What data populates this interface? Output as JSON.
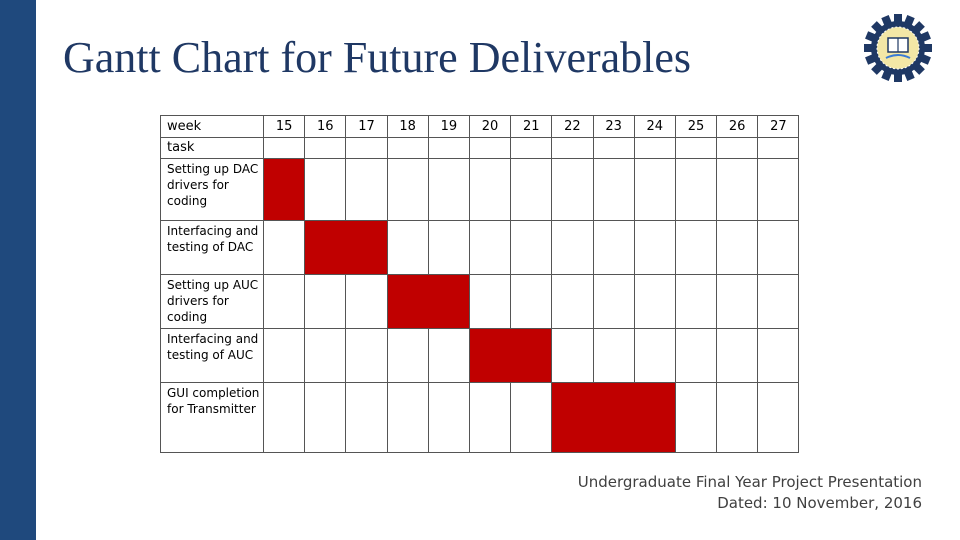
{
  "slide": {
    "title": "Gantt Chart for Future Deliverables",
    "accent_color": "#1f497d",
    "logo_icon": "university-seal-gear-icon"
  },
  "chart_data": {
    "type": "table",
    "header_label": "week",
    "task_header": "task",
    "weeks": [
      "15",
      "16",
      "17",
      "18",
      "19",
      "20",
      "21",
      "22",
      "23",
      "24",
      "25",
      "26",
      "27"
    ],
    "bar_color": "#c00000",
    "tasks": [
      {
        "label": "Setting up DAC drivers for coding",
        "start_week": 15,
        "end_week": 15
      },
      {
        "label": "Interfacing and testing of  DAC",
        "start_week": 16,
        "end_week": 17
      },
      {
        "label": "Setting up AUC drivers for coding",
        "start_week": 18,
        "end_week": 19
      },
      {
        "label": "Interfacing and testing of  AUC",
        "start_week": 20,
        "end_week": 21
      },
      {
        "label": "GUI completion for Transmitter",
        "start_week": 22,
        "end_week": 24
      }
    ]
  },
  "footer": {
    "line1": "Undergraduate Final Year Project Presentation",
    "line2": "Dated: 10 November, 2016"
  }
}
